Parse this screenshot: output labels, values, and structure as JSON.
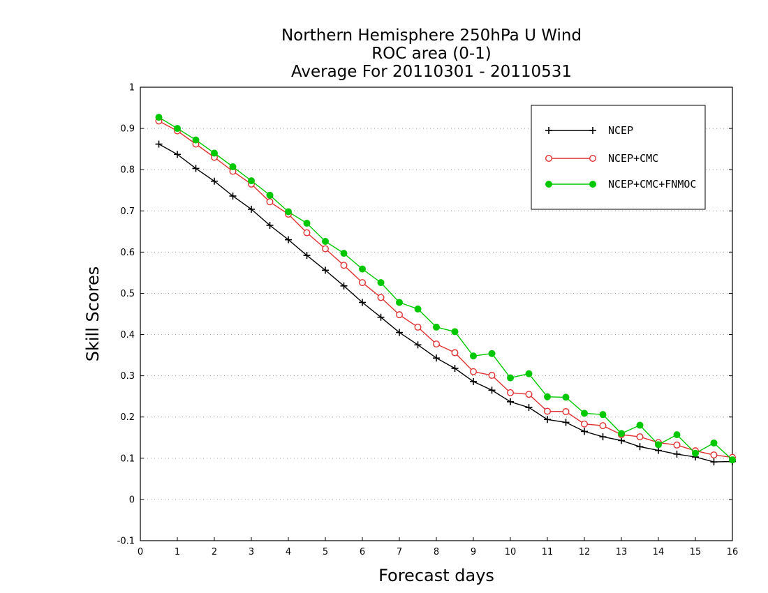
{
  "chart_data": {
    "type": "line",
    "title": [
      "Northern Hemisphere 250hPa U Wind",
      "ROC area (0-1)",
      "Average For 20110301 - 20110531"
    ],
    "xlabel": "Forecast days",
    "ylabel": "Skill Scores",
    "xlim": [
      0,
      16
    ],
    "ylim": [
      -0.1,
      1
    ],
    "x_ticks": [
      0,
      1,
      2,
      3,
      4,
      5,
      6,
      7,
      8,
      9,
      10,
      11,
      12,
      13,
      14,
      15,
      16
    ],
    "y_ticks": [
      -0.1,
      0,
      0.1,
      0.2,
      0.3,
      0.4,
      0.5,
      0.6,
      0.7,
      0.8,
      0.9,
      1
    ],
    "grid": true,
    "legend_position": "top-right",
    "x": [
      0.5,
      1,
      1.5,
      2,
      2.5,
      3,
      3.5,
      4,
      4.5,
      5,
      5.5,
      6,
      6.5,
      7,
      7.5,
      8,
      8.5,
      9,
      9.5,
      10,
      10.5,
      11,
      11.5,
      12,
      12.5,
      13,
      13.5,
      14,
      14.5,
      15,
      15.5,
      16
    ],
    "series": [
      {
        "name": "NCEP",
        "color": "#000000",
        "marker": "plus",
        "values": [
          0.862,
          0.837,
          0.803,
          0.772,
          0.736,
          0.704,
          0.665,
          0.63,
          0.592,
          0.556,
          0.518,
          0.478,
          0.442,
          0.405,
          0.375,
          0.343,
          0.318,
          0.286,
          0.265,
          0.237,
          0.223,
          0.194,
          0.187,
          0.165,
          0.152,
          0.143,
          0.128,
          0.119,
          0.11,
          0.103,
          0.091,
          0.092
        ]
      },
      {
        "name": "NCEP+CMC",
        "color": "#e03030",
        "marker": "open-circle",
        "values": [
          0.918,
          0.894,
          0.862,
          0.83,
          0.796,
          0.765,
          0.722,
          0.692,
          0.647,
          0.608,
          0.568,
          0.526,
          0.49,
          0.448,
          0.418,
          0.377,
          0.356,
          0.31,
          0.301,
          0.259,
          0.255,
          0.214,
          0.213,
          0.183,
          0.179,
          0.157,
          0.152,
          0.138,
          0.132,
          0.118,
          0.108,
          0.102
        ]
      },
      {
        "name": "NCEP+CMC+FNMOC",
        "color": "#00c800",
        "marker": "filled-circle",
        "values": [
          0.927,
          0.9,
          0.872,
          0.84,
          0.807,
          0.773,
          0.738,
          0.698,
          0.67,
          0.626,
          0.597,
          0.559,
          0.526,
          0.478,
          0.462,
          0.418,
          0.407,
          0.348,
          0.354,
          0.295,
          0.305,
          0.249,
          0.248,
          0.209,
          0.206,
          0.16,
          0.18,
          0.133,
          0.157,
          0.112,
          0.137,
          0.096
        ]
      }
    ]
  }
}
